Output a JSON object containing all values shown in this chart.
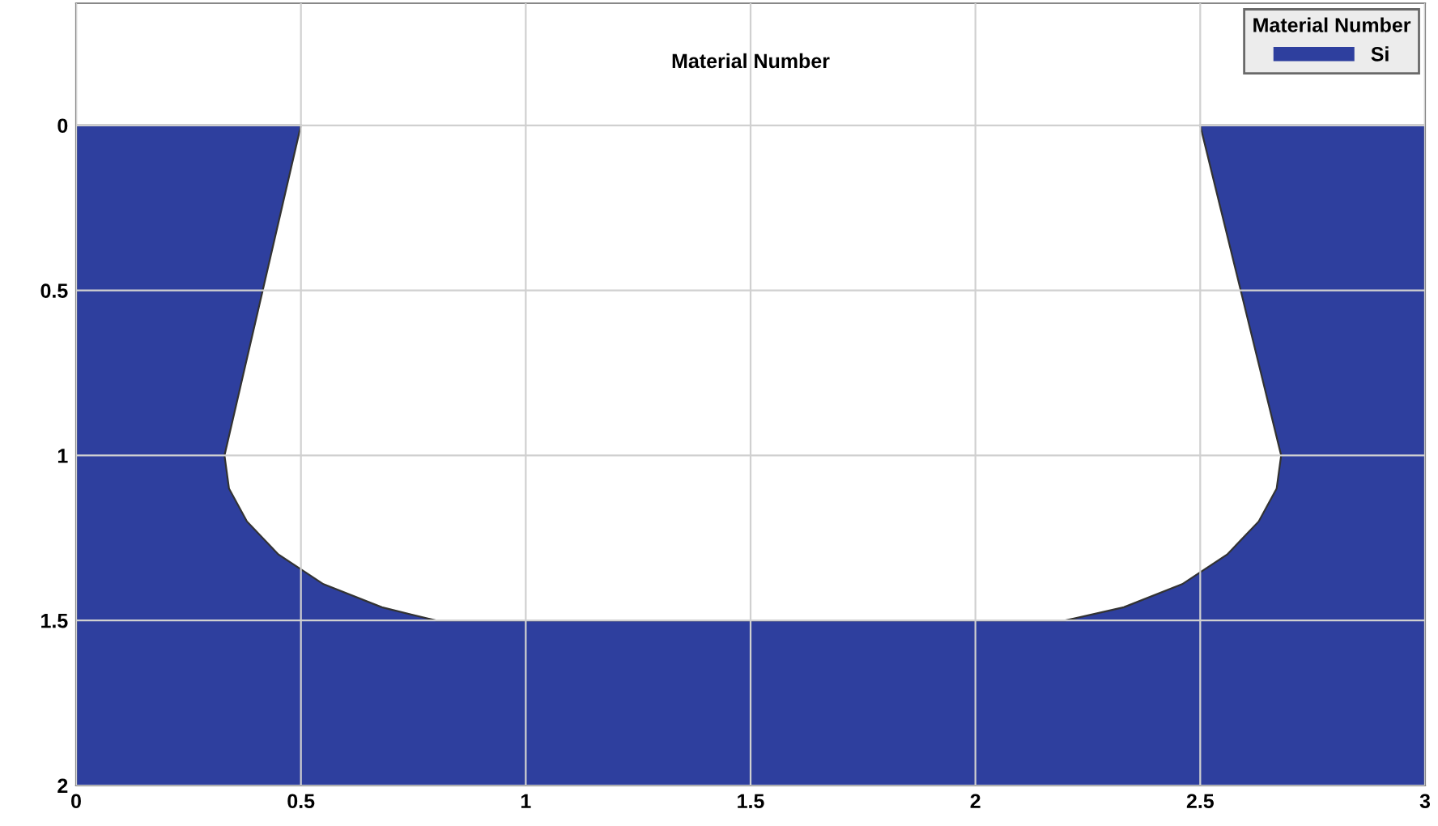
{
  "chart_data": {
    "type": "area",
    "title": "Material Number",
    "legend_title": "Material Number",
    "legend": "top right",
    "grid": true,
    "xlim": [
      0,
      3
    ],
    "xticks": [
      0,
      0.5,
      1,
      1.5,
      2,
      2.5,
      3
    ],
    "ylim": [
      2,
      -0.37
    ],
    "yticks": [
      0,
      0.5,
      1,
      1.5,
      2
    ],
    "series": [
      {
        "name": "Si",
        "color": "#2e3f9e",
        "x": [
          0,
          0,
          0.5,
          0.33,
          0.34,
          0.38,
          0.45,
          0.55,
          0.68,
          0.8,
          2.2,
          2.33,
          2.46,
          2.56,
          2.63,
          2.67,
          2.68,
          2.5,
          3,
          3
        ],
        "values": [
          2,
          0,
          0,
          1.0,
          1.1,
          1.2,
          1.3,
          1.39,
          1.46,
          1.5,
          1.5,
          1.46,
          1.39,
          1.3,
          1.2,
          1.1,
          1.0,
          0,
          0,
          2
        ]
      }
    ]
  }
}
